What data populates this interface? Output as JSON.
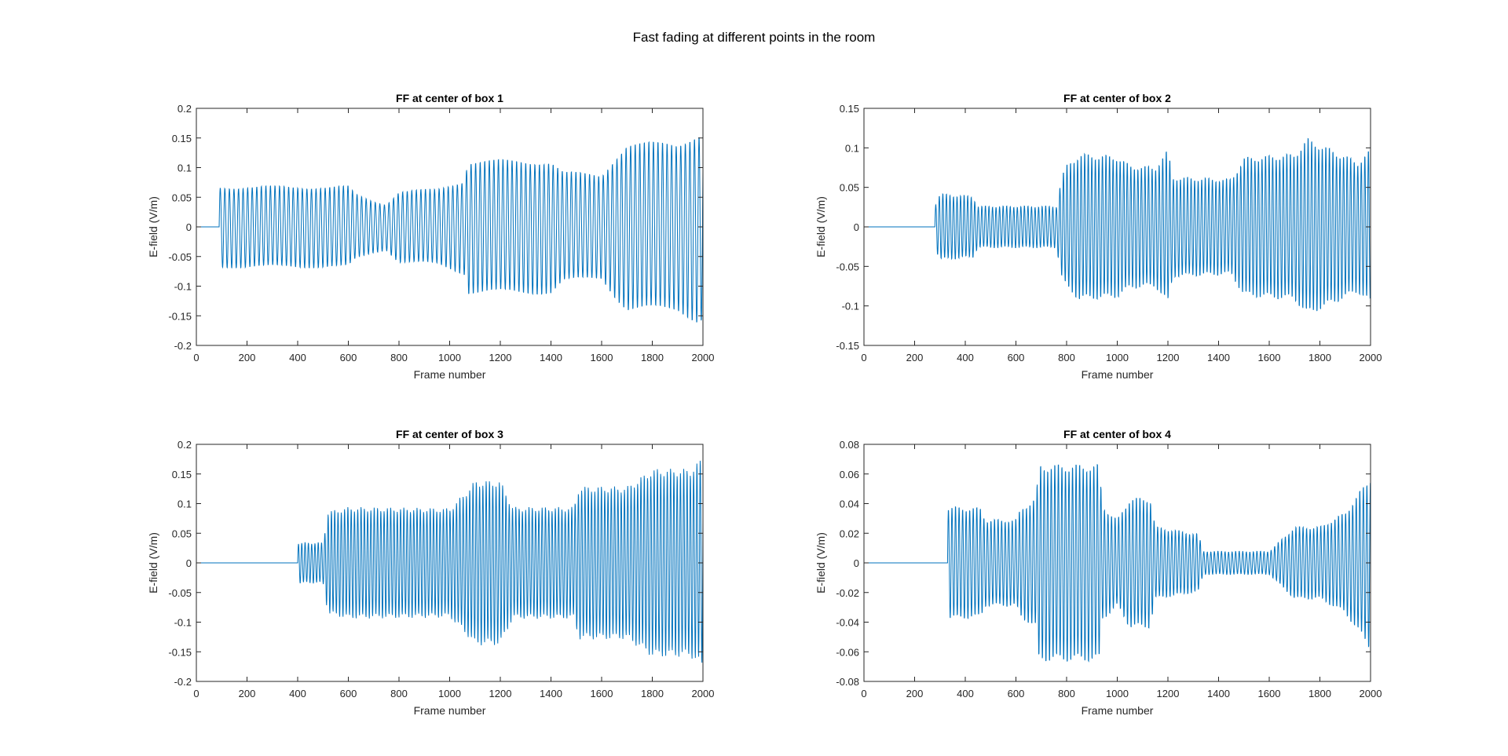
{
  "figure": {
    "title": "Fast fading at different points in the room"
  },
  "colors": {
    "line": "#0072BD",
    "axis": "#262626",
    "background": "#ffffff"
  },
  "chart_data": [
    {
      "type": "line",
      "title": "FF at center of box 1",
      "xlabel": "Frame number",
      "ylabel": "E-field (V/m)",
      "xlim": [
        0,
        2000
      ],
      "ylim": [
        -0.2,
        0.2
      ],
      "xticks": [
        0,
        200,
        400,
        600,
        800,
        1000,
        1200,
        1400,
        1600,
        1800,
        2000
      ],
      "yticks": [
        -0.2,
        -0.15,
        -0.1,
        -0.05,
        0,
        0.05,
        0.1,
        0.15,
        0.2
      ],
      "xtick_labels": [
        "0",
        "200",
        "400",
        "600",
        "800",
        "1000",
        "1200",
        "1400",
        "1600",
        "1800",
        "2000"
      ],
      "ytick_labels": [
        "-0.2",
        "-0.15",
        "-0.1",
        "-0.05",
        "0",
        "0.05",
        "0.1",
        "0.15",
        "0.2"
      ],
      "grid": false,
      "period": 18,
      "onset": 90,
      "envelope": [
        [
          90,
          0.07
        ],
        [
          600,
          0.07
        ],
        [
          630,
          0.056
        ],
        [
          700,
          0.045
        ],
        [
          750,
          0.04
        ],
        [
          800,
          0.062
        ],
        [
          950,
          0.065
        ],
        [
          1060,
          0.082
        ],
        [
          1070,
          0.115
        ],
        [
          1400,
          0.115
        ],
        [
          1450,
          0.095
        ],
        [
          1600,
          0.09
        ],
        [
          1650,
          0.12
        ],
        [
          1700,
          0.145
        ],
        [
          1900,
          0.145
        ],
        [
          1980,
          0.165
        ],
        [
          2000,
          0.16
        ]
      ]
    },
    {
      "type": "line",
      "title": "FF at center of box 2",
      "xlabel": "Frame number",
      "ylabel": "E-field (V/m)",
      "xlim": [
        0,
        2000
      ],
      "ylim": [
        -0.15,
        0.15
      ],
      "xticks": [
        0,
        200,
        400,
        600,
        800,
        1000,
        1200,
        1400,
        1600,
        1800,
        2000
      ],
      "yticks": [
        -0.15,
        -0.1,
        -0.05,
        0,
        0.05,
        0.1,
        0.15
      ],
      "xtick_labels": [
        "0",
        "200",
        "400",
        "600",
        "800",
        "1000",
        "1200",
        "1400",
        "1600",
        "1800",
        "2000"
      ],
      "ytick_labels": [
        "-0.15",
        "-0.1",
        "-0.05",
        "0",
        "0.05",
        "0.1",
        "0.15"
      ],
      "grid": false,
      "period": 14,
      "onset": 280,
      "envelope": [
        [
          280,
          0.028
        ],
        [
          300,
          0.043
        ],
        [
          430,
          0.04
        ],
        [
          450,
          0.027
        ],
        [
          760,
          0.027
        ],
        [
          780,
          0.065
        ],
        [
          800,
          0.08
        ],
        [
          850,
          0.095
        ],
        [
          1000,
          0.092
        ],
        [
          1050,
          0.08
        ],
        [
          1150,
          0.078
        ],
        [
          1200,
          0.1
        ],
        [
          1220,
          0.065
        ],
        [
          1450,
          0.062
        ],
        [
          1500,
          0.09
        ],
        [
          1700,
          0.095
        ],
        [
          1750,
          0.115
        ],
        [
          1850,
          0.1
        ],
        [
          1950,
          0.085
        ],
        [
          2000,
          0.1
        ]
      ]
    },
    {
      "type": "line",
      "title": "FF at center of box 3",
      "xlabel": "Frame number",
      "ylabel": "E-field (V/m)",
      "xlim": [
        0,
        2000
      ],
      "ylim": [
        -0.2,
        0.2
      ],
      "xticks": [
        0,
        200,
        400,
        600,
        800,
        1000,
        1200,
        1400,
        1600,
        1800,
        2000
      ],
      "yticks": [
        -0.2,
        -0.15,
        -0.1,
        -0.05,
        0,
        0.05,
        0.1,
        0.15,
        0.2
      ],
      "xtick_labels": [
        "0",
        "200",
        "400",
        "600",
        "800",
        "1000",
        "1200",
        "1400",
        "1600",
        "1800",
        "2000"
      ],
      "ytick_labels": [
        "-0.2",
        "-0.15",
        "-0.1",
        "-0.05",
        "0",
        "0.05",
        "0.1",
        "0.15",
        "0.2"
      ],
      "grid": false,
      "period": 13,
      "onset": 400,
      "envelope": [
        [
          400,
          0.035
        ],
        [
          500,
          0.035
        ],
        [
          520,
          0.088
        ],
        [
          600,
          0.095
        ],
        [
          1000,
          0.093
        ],
        [
          1050,
          0.115
        ],
        [
          1100,
          0.14
        ],
        [
          1200,
          0.14
        ],
        [
          1250,
          0.095
        ],
        [
          1490,
          0.095
        ],
        [
          1510,
          0.13
        ],
        [
          1700,
          0.13
        ],
        [
          1800,
          0.16
        ],
        [
          1950,
          0.16
        ],
        [
          2000,
          0.18
        ]
      ]
    },
    {
      "type": "line",
      "title": "FF at center of box 4",
      "xlabel": "Frame number",
      "ylabel": "E-field (V/m)",
      "xlim": [
        0,
        2000
      ],
      "ylim": [
        -0.08,
        0.08
      ],
      "xticks": [
        0,
        200,
        400,
        600,
        800,
        1000,
        1200,
        1400,
        1600,
        1800,
        2000
      ],
      "yticks": [
        -0.08,
        -0.06,
        -0.04,
        -0.02,
        0,
        0.02,
        0.04,
        0.06,
        0.08
      ],
      "xtick_labels": [
        "0",
        "200",
        "400",
        "600",
        "800",
        "1000",
        "1200",
        "1400",
        "1600",
        "1800",
        "2000"
      ],
      "ytick_labels": [
        "-0.08",
        "-0.06",
        "-0.04",
        "-0.02",
        "0",
        "0.02",
        "0.04",
        "0.06",
        "0.08"
      ],
      "grid": false,
      "period": 14,
      "onset": 330,
      "envelope": [
        [
          330,
          0.039
        ],
        [
          460,
          0.038
        ],
        [
          480,
          0.03
        ],
        [
          600,
          0.03
        ],
        [
          620,
          0.038
        ],
        [
          680,
          0.045
        ],
        [
          690,
          0.068
        ],
        [
          930,
          0.068
        ],
        [
          940,
          0.04
        ],
        [
          1000,
          0.03
        ],
        [
          1050,
          0.045
        ],
        [
          1130,
          0.045
        ],
        [
          1150,
          0.025
        ],
        [
          1320,
          0.02
        ],
        [
          1340,
          0.008
        ],
        [
          1600,
          0.008
        ],
        [
          1700,
          0.025
        ],
        [
          1800,
          0.025
        ],
        [
          1900,
          0.035
        ],
        [
          1960,
          0.05
        ],
        [
          2000,
          0.06
        ]
      ]
    }
  ]
}
